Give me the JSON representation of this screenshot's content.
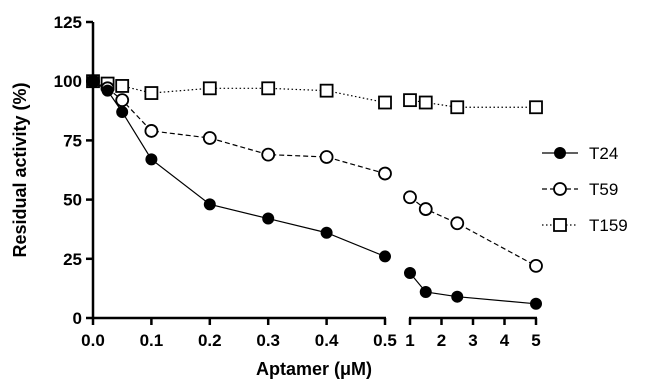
{
  "chart_data": {
    "type": "line",
    "title": "",
    "xlabel": "Aptamer (μM)",
    "ylabel": "Residual activity (%)",
    "ylim": [
      0,
      125
    ],
    "yticks": [
      "0",
      "25",
      "50",
      "75",
      "100",
      "125"
    ],
    "x_axis_segments": [
      {
        "range": [
          0,
          0.5
        ],
        "ticks": [
          "0.0",
          "0.1",
          "0.2",
          "0.3",
          "0.4",
          "0.5"
        ]
      },
      {
        "range": [
          1,
          5
        ],
        "ticks": [
          "1",
          "2",
          "3",
          "4",
          "5"
        ]
      }
    ],
    "grid": false,
    "legend_position": "right",
    "series": [
      {
        "name": "T24",
        "marker": "filled-circle",
        "line": "solid",
        "color": "#000000",
        "x": [
          0,
          0.025,
          0.05,
          0.1,
          0.2,
          0.3,
          0.4,
          0.5,
          1,
          1.5,
          2.5,
          5
        ],
        "y": [
          100,
          96,
          87,
          67,
          48,
          42,
          36,
          26,
          19,
          11,
          9,
          6
        ]
      },
      {
        "name": "T59",
        "marker": "open-circle",
        "line": "dashed",
        "color": "#000000",
        "x": [
          0,
          0.025,
          0.05,
          0.1,
          0.2,
          0.3,
          0.4,
          0.5,
          1,
          1.5,
          2.5,
          5
        ],
        "y": [
          100,
          97,
          92,
          79,
          76,
          69,
          68,
          61,
          51,
          46,
          40,
          22
        ]
      },
      {
        "name": "T159",
        "marker": "open-square",
        "line": "dotted",
        "color": "#000000",
        "x": [
          0,
          0.025,
          0.05,
          0.1,
          0.2,
          0.3,
          0.4,
          0.5,
          1,
          1.5,
          2.5,
          5
        ],
        "y": [
          100,
          99,
          98,
          95,
          97,
          97,
          96,
          91,
          92,
          91,
          89,
          89
        ]
      }
    ]
  }
}
